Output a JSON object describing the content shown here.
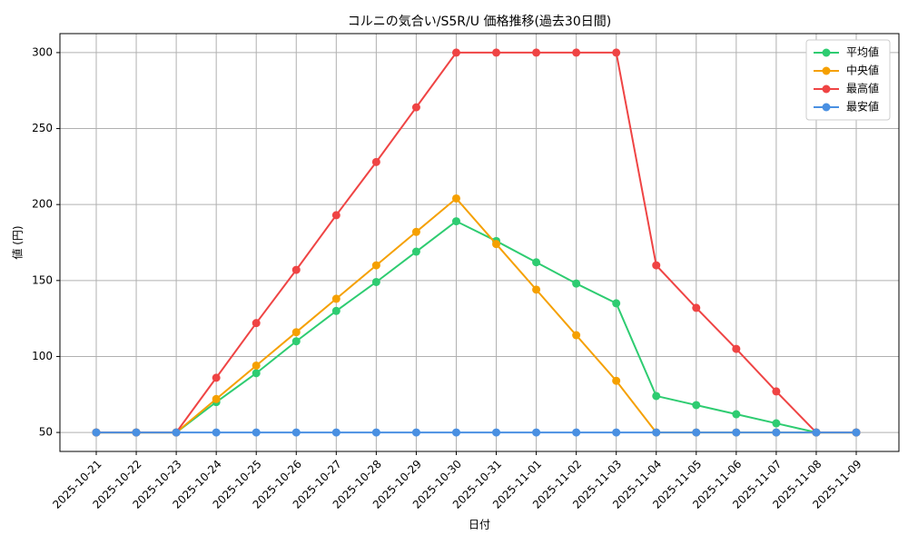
{
  "chart_data": {
    "type": "line",
    "title": "コルニの気合い/S5R/U 価格推移(過去30日間)",
    "x_label": "日付",
    "y_label": "値 (円)",
    "categories": [
      "2025-10-21",
      "2025-10-22",
      "2025-10-23",
      "2025-10-24",
      "2025-10-25",
      "2025-10-26",
      "2025-10-27",
      "2025-10-28",
      "2025-10-29",
      "2025-10-30",
      "2025-10-31",
      "2025-11-01",
      "2025-11-02",
      "2025-11-03",
      "2025-11-04",
      "2025-11-05",
      "2025-11-06",
      "2025-11-07",
      "2025-11-08",
      "2025-11-09"
    ],
    "series": [
      {
        "name": "平均値",
        "color": "#2ecc71",
        "values": [
          50,
          50,
          50,
          70,
          89,
          110,
          130,
          149,
          169,
          189,
          176,
          162,
          148,
          135,
          74,
          68,
          62,
          56,
          50,
          50
        ]
      },
      {
        "name": "中央値",
        "color": "#f5a000",
        "values": [
          50,
          50,
          50,
          72,
          94,
          116,
          138,
          160,
          182,
          204,
          174,
          144,
          114,
          84,
          50,
          50,
          50,
          50,
          50,
          50
        ]
      },
      {
        "name": "最高値",
        "color": "#ef4444",
        "values": [
          50,
          50,
          50,
          86,
          122,
          157,
          193,
          228,
          264,
          300,
          300,
          300,
          300,
          300,
          160,
          132,
          105,
          77,
          50,
          50
        ]
      },
      {
        "name": "最安値",
        "color": "#4a90e2",
        "values": [
          50,
          50,
          50,
          50,
          50,
          50,
          50,
          50,
          50,
          50,
          50,
          50,
          50,
          50,
          50,
          50,
          50,
          50,
          50,
          50
        ]
      }
    ],
    "ylim": [
      37.5,
      312.5
    ],
    "yticks": [
      50,
      100,
      150,
      200,
      250,
      300
    ],
    "grid": true,
    "legend": "upper-right"
  }
}
